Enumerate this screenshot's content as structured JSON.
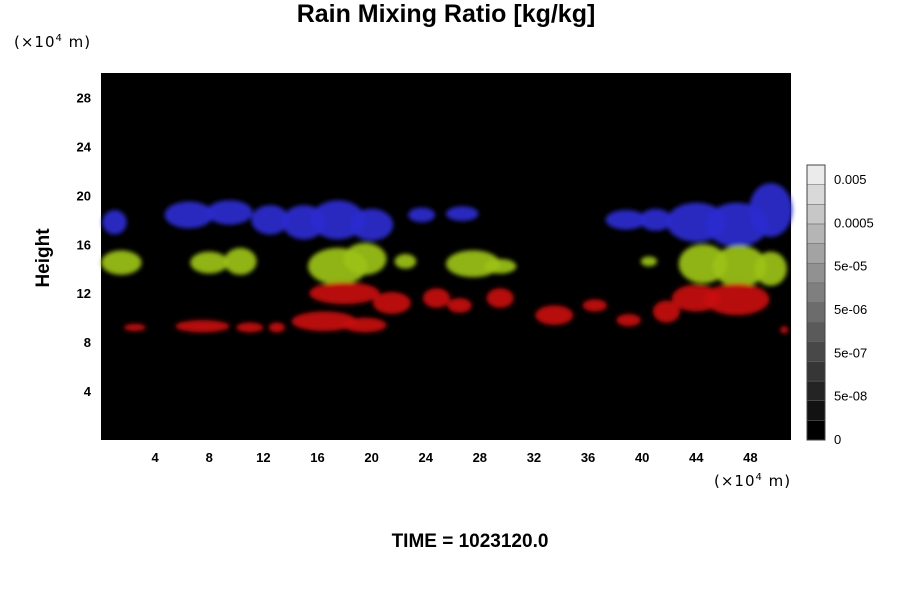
{
  "chart_data": {
    "type": "heatmap",
    "title": "Rain Mixing Ratio [kg/kg]",
    "ylabel": "Height",
    "y_unit_prefix": "(×10",
    "y_unit_exp": "4",
    "y_unit_suffix": " m)",
    "x_unit_prefix": "(×10",
    "x_unit_exp": "4",
    "x_unit_suffix": " m)",
    "xlim": [
      0,
      51
    ],
    "ylim": [
      0,
      30
    ],
    "x_ticks": [
      4,
      8,
      12,
      16,
      20,
      24,
      28,
      32,
      36,
      40,
      44,
      48
    ],
    "y_ticks": [
      4,
      8,
      12,
      16,
      20,
      24,
      28
    ],
    "colorbar": {
      "labels": [
        "0.005",
        "0.0005",
        "5e-05",
        "5e-06",
        "5e-07",
        "5e-08",
        "0"
      ],
      "levels": 14
    },
    "layers": [
      {
        "name": "blue",
        "color": "#2a2ad0",
        "y_range": [
          16,
          21
        ],
        "blobs": [
          {
            "x": 1.0,
            "y": 17.8,
            "rx": 0.9,
            "ry": 1.0
          },
          {
            "x": 6.5,
            "y": 18.4,
            "rx": 1.8,
            "ry": 1.1
          },
          {
            "x": 9.5,
            "y": 18.6,
            "rx": 1.7,
            "ry": 1.0
          },
          {
            "x": 12.5,
            "y": 18.0,
            "rx": 1.4,
            "ry": 1.2
          },
          {
            "x": 15.0,
            "y": 17.8,
            "rx": 1.6,
            "ry": 1.4
          },
          {
            "x": 17.5,
            "y": 18.0,
            "rx": 2.0,
            "ry": 1.6
          },
          {
            "x": 20.0,
            "y": 17.6,
            "rx": 1.6,
            "ry": 1.3
          },
          {
            "x": 23.7,
            "y": 18.4,
            "rx": 1.0,
            "ry": 0.6
          },
          {
            "x": 26.7,
            "y": 18.5,
            "rx": 1.2,
            "ry": 0.6
          },
          {
            "x": 38.8,
            "y": 18.0,
            "rx": 1.5,
            "ry": 0.8
          },
          {
            "x": 41.0,
            "y": 18.0,
            "rx": 1.2,
            "ry": 0.9
          },
          {
            "x": 44.0,
            "y": 17.8,
            "rx": 2.2,
            "ry": 1.6
          },
          {
            "x": 47.0,
            "y": 17.6,
            "rx": 2.3,
            "ry": 1.8
          },
          {
            "x": 49.5,
            "y": 18.8,
            "rx": 1.6,
            "ry": 2.2
          }
        ]
      },
      {
        "name": "green",
        "color": "#9cc21a",
        "y_range": [
          12.5,
          16
        ],
        "blobs": [
          {
            "x": 1.5,
            "y": 14.5,
            "rx": 1.5,
            "ry": 1.0
          },
          {
            "x": 8.0,
            "y": 14.5,
            "rx": 1.4,
            "ry": 0.9
          },
          {
            "x": 10.3,
            "y": 14.6,
            "rx": 1.2,
            "ry": 1.1
          },
          {
            "x": 17.5,
            "y": 14.2,
            "rx": 2.2,
            "ry": 1.5
          },
          {
            "x": 19.5,
            "y": 14.8,
            "rx": 1.6,
            "ry": 1.3
          },
          {
            "x": 22.5,
            "y": 14.6,
            "rx": 0.8,
            "ry": 0.6
          },
          {
            "x": 27.5,
            "y": 14.4,
            "rx": 2.0,
            "ry": 1.1
          },
          {
            "x": 29.5,
            "y": 14.2,
            "rx": 1.2,
            "ry": 0.6
          },
          {
            "x": 40.5,
            "y": 14.6,
            "rx": 0.6,
            "ry": 0.4
          },
          {
            "x": 44.5,
            "y": 14.4,
            "rx": 1.8,
            "ry": 1.6
          },
          {
            "x": 47.2,
            "y": 14.2,
            "rx": 2.0,
            "ry": 1.7
          },
          {
            "x": 49.5,
            "y": 14.0,
            "rx": 1.2,
            "ry": 1.4
          }
        ]
      },
      {
        "name": "red",
        "color": "#c81010",
        "y_range": [
          8.5,
          13
        ],
        "blobs": [
          {
            "x": 2.5,
            "y": 9.2,
            "rx": 0.8,
            "ry": 0.3
          },
          {
            "x": 7.5,
            "y": 9.3,
            "rx": 2.0,
            "ry": 0.5
          },
          {
            "x": 11.0,
            "y": 9.2,
            "rx": 1.0,
            "ry": 0.4
          },
          {
            "x": 13.0,
            "y": 9.2,
            "rx": 0.6,
            "ry": 0.4
          },
          {
            "x": 16.5,
            "y": 9.7,
            "rx": 2.4,
            "ry": 0.8
          },
          {
            "x": 19.5,
            "y": 9.4,
            "rx": 1.6,
            "ry": 0.6
          },
          {
            "x": 18.0,
            "y": 12.0,
            "rx": 2.6,
            "ry": 0.9
          },
          {
            "x": 21.5,
            "y": 11.2,
            "rx": 1.4,
            "ry": 0.9
          },
          {
            "x": 24.8,
            "y": 11.6,
            "rx": 1.0,
            "ry": 0.8
          },
          {
            "x": 26.5,
            "y": 11.0,
            "rx": 0.9,
            "ry": 0.6
          },
          {
            "x": 29.5,
            "y": 11.6,
            "rx": 1.0,
            "ry": 0.8
          },
          {
            "x": 33.5,
            "y": 10.2,
            "rx": 1.4,
            "ry": 0.8
          },
          {
            "x": 36.5,
            "y": 11.0,
            "rx": 0.9,
            "ry": 0.5
          },
          {
            "x": 39.0,
            "y": 9.8,
            "rx": 0.9,
            "ry": 0.5
          },
          {
            "x": 41.8,
            "y": 10.5,
            "rx": 1.0,
            "ry": 0.9
          },
          {
            "x": 44.0,
            "y": 11.6,
            "rx": 1.8,
            "ry": 1.1
          },
          {
            "x": 47.0,
            "y": 11.5,
            "rx": 2.4,
            "ry": 1.3
          },
          {
            "x": 50.5,
            "y": 9.0,
            "rx": 0.3,
            "ry": 0.3
          }
        ]
      }
    ]
  },
  "footer": {
    "time_text": "TIME = 1023120.0"
  }
}
